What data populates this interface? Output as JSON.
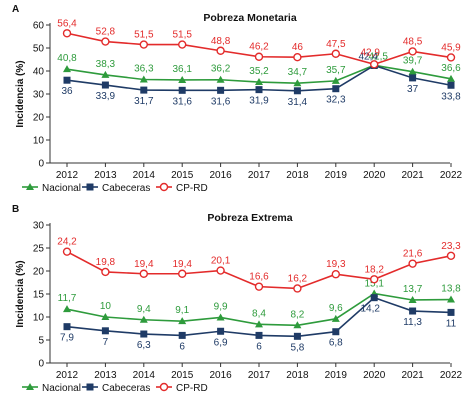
{
  "chart_data": [
    {
      "type": "line",
      "panel_label": "A",
      "title": "Pobreza Monetaria",
      "ylabel": "Incidencia (%)",
      "xlabel": "",
      "x": [
        "2012",
        "2013",
        "2014",
        "2015",
        "2016",
        "2017",
        "2018",
        "2019",
        "2020",
        "2021",
        "2022"
      ],
      "ylim": [
        0,
        60
      ],
      "yticks": [
        0,
        10,
        20,
        30,
        40,
        50,
        60
      ],
      "grid": false,
      "legend_position": "bottom-left",
      "series": [
        {
          "name": "Nacional",
          "color": "#2e9b3c",
          "marker": "triangle",
          "values": [
            40.8,
            38.3,
            36.3,
            36.1,
            36.2,
            35.2,
            34.7,
            35.7,
            42.5,
            39.7,
            36.6
          ]
        },
        {
          "name": "Cabeceras",
          "color": "#1f3b66",
          "marker": "square",
          "values": [
            36,
            33.9,
            31.7,
            31.6,
            31.6,
            31.9,
            31.4,
            32.3,
            42.4,
            37,
            33.8
          ]
        },
        {
          "name": "CP-RD",
          "color": "#e32b2b",
          "marker": "circle",
          "values": [
            56.4,
            52.8,
            51.5,
            51.5,
            48.8,
            46.2,
            46,
            47.5,
            42.9,
            48.5,
            45.9
          ]
        }
      ]
    },
    {
      "type": "line",
      "panel_label": "B",
      "title": "Pobreza Extrema",
      "ylabel": "Incidencia (%)",
      "xlabel": "",
      "x": [
        "2012",
        "2013",
        "2014",
        "2015",
        "2016",
        "2017",
        "2018",
        "2019",
        "2020",
        "2021",
        "2022"
      ],
      "ylim": [
        0,
        30
      ],
      "yticks": [
        0,
        5,
        10,
        15,
        20,
        25,
        30
      ],
      "grid": false,
      "legend_position": "bottom-left",
      "series": [
        {
          "name": "Nacional",
          "color": "#2e9b3c",
          "marker": "triangle",
          "values": [
            11.7,
            10,
            9.4,
            9.1,
            9.9,
            8.4,
            8.2,
            9.6,
            15.1,
            13.7,
            13.8
          ]
        },
        {
          "name": "Cabeceras",
          "color": "#1f3b66",
          "marker": "square",
          "values": [
            7.9,
            7,
            6.3,
            6,
            6.9,
            6,
            5.8,
            6.8,
            14.2,
            11.3,
            11
          ]
        },
        {
          "name": "CP-RD",
          "color": "#e32b2b",
          "marker": "circle",
          "values": [
            24.2,
            19.8,
            19.4,
            19.4,
            20.1,
            16.6,
            16.2,
            19.3,
            18.2,
            21.6,
            23.3
          ]
        }
      ]
    }
  ]
}
